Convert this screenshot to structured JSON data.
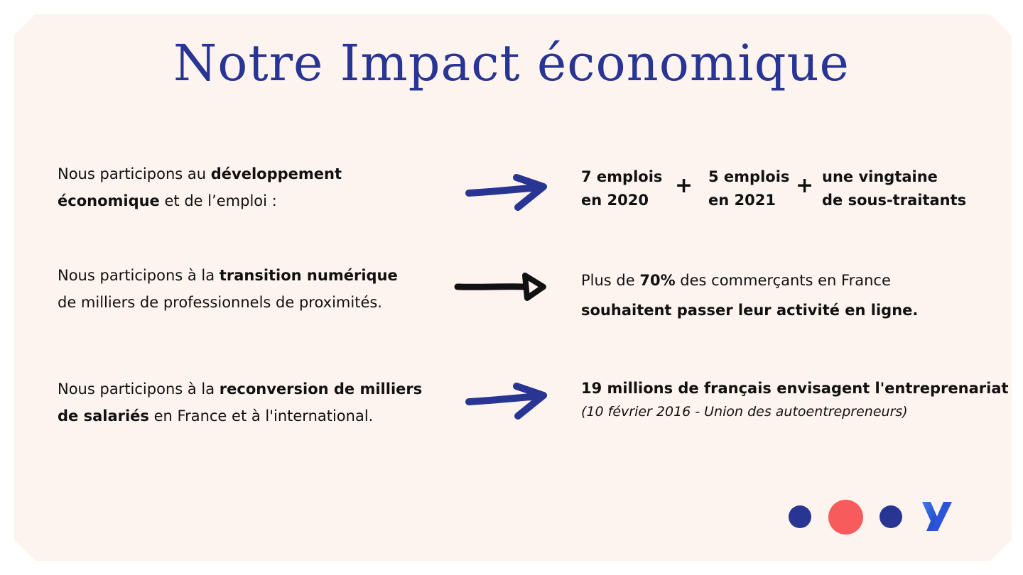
{
  "title": "Notre Impact économique",
  "rows": [
    {
      "left": {
        "pre": "Nous participons au ",
        "bold1": "développement",
        "bold2": "économique",
        "post": " et de l’emploi :"
      },
      "stats": [
        {
          "line1": "7 emplois",
          "line2": "en 2020"
        },
        {
          "line1": "5 emplois",
          "line2": "en 2021"
        },
        {
          "line1": "une vingtaine",
          "line2": "de sous-traitants"
        }
      ],
      "plus": "+"
    },
    {
      "left": {
        "pre": "Nous participons à la ",
        "bold": "transition numérique",
        "line2": "de milliers de professionnels de proximités."
      },
      "right": {
        "pre": "Plus de ",
        "bold": "70%",
        "post": " des commerçants en France",
        "line2": "souhaitent passer leur activité en ligne."
      }
    },
    {
      "left": {
        "pre": "Nous participons à la ",
        "bold1": "reconversion de milliers",
        "bold2": "de salariés",
        "post": " en France et à l'international."
      },
      "right": {
        "line1": "19 millions de français envisagent l'entreprenariat",
        "line2": "(10 février 2016 - Union des autoentrepreneurs)"
      }
    }
  ],
  "colors": {
    "navy": "#283593",
    "coral": "#f75b5b",
    "card": "#fdf3ef"
  },
  "decor": {
    "dots": [
      "navy",
      "coral",
      "navy"
    ],
    "logo_icon": "y-logo-icon"
  }
}
